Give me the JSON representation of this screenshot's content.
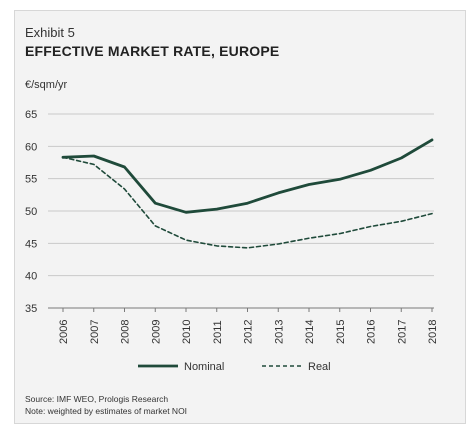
{
  "exhibit": "Exhibit 5",
  "title": "EFFECTIVE MARKET RATE, EUROPE",
  "unit_label": "€/sqm/yr",
  "source_lines": [
    "Source: IMF WEO, Prologis Research",
    "Note: weighted by estimates of market NOI"
  ],
  "colors": {
    "series": "#1f4a3a",
    "grid": "#c8c8c8",
    "axis": "#7a7a7a"
  },
  "chart_data": {
    "type": "line",
    "title": "EFFECTIVE MARKET RATE, EUROPE",
    "ylabel": "€/sqm/yr",
    "xlabel": "",
    "x": [
      "2006",
      "2007",
      "2008",
      "2009",
      "2010",
      "2011",
      "2012",
      "2013",
      "2014",
      "2015",
      "2016",
      "2017",
      "2018"
    ],
    "ylim": [
      35,
      65
    ],
    "yticks": [
      35,
      40,
      45,
      50,
      55,
      60,
      65
    ],
    "grid": true,
    "legend_position": "bottom",
    "series": [
      {
        "name": "Nominal",
        "style": "solid",
        "values": [
          58.3,
          58.5,
          56.8,
          51.2,
          49.8,
          50.3,
          51.2,
          52.8,
          54.1,
          54.9,
          56.3,
          58.2,
          61.0
        ]
      },
      {
        "name": "Real",
        "style": "dashed",
        "values": [
          58.3,
          57.2,
          53.4,
          47.7,
          45.5,
          44.6,
          44.3,
          44.9,
          45.8,
          46.5,
          47.6,
          48.4,
          49.6
        ]
      }
    ]
  }
}
